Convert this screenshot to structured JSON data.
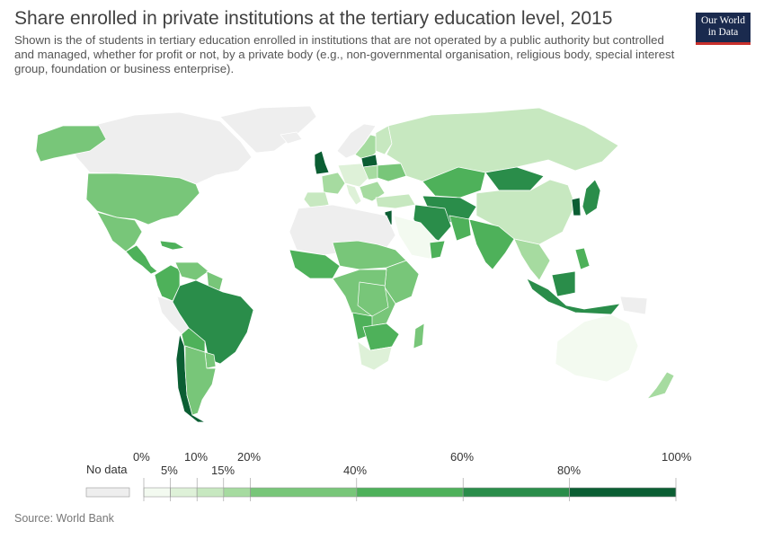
{
  "header": {
    "title": "Share enrolled in private institutions at the tertiary education level, 2015",
    "subtitle": "Shown is the of students in tertiary education enrolled in institutions that are not operated by a public authority but controlled and managed, whether for profit or not, by a private body (e.g., non-governmental organisation, religious body, special interest group, foundation or business enterprise)."
  },
  "logo": {
    "line1": "Our World",
    "line2": "in Data"
  },
  "legend": {
    "no_data_label": "No data",
    "no_data_color": "#eeeeee",
    "top_ticks": [
      "0%",
      "10%",
      "20%",
      "60%",
      "100%"
    ],
    "bottom_ticks": [
      "5%",
      "15%",
      "40%",
      "80%"
    ],
    "bins": [
      {
        "from": 0,
        "to": 5,
        "color": "#f3faf0"
      },
      {
        "from": 5,
        "to": 10,
        "color": "#def1d8"
      },
      {
        "from": 10,
        "to": 15,
        "color": "#c7e8c0"
      },
      {
        "from": 15,
        "to": 20,
        "color": "#a6dba0"
      },
      {
        "from": 20,
        "to": 40,
        "color": "#78c679"
      },
      {
        "from": 40,
        "to": 60,
        "color": "#4eb15a"
      },
      {
        "from": 60,
        "to": 80,
        "color": "#2a8d4a"
      },
      {
        "from": 80,
        "to": 100,
        "color": "#0b5e33"
      }
    ]
  },
  "colors": {
    "ocean": "#ffffff",
    "border": "#ffffff",
    "no_data": "#eeeeee"
  },
  "source": "Source: World Bank"
}
